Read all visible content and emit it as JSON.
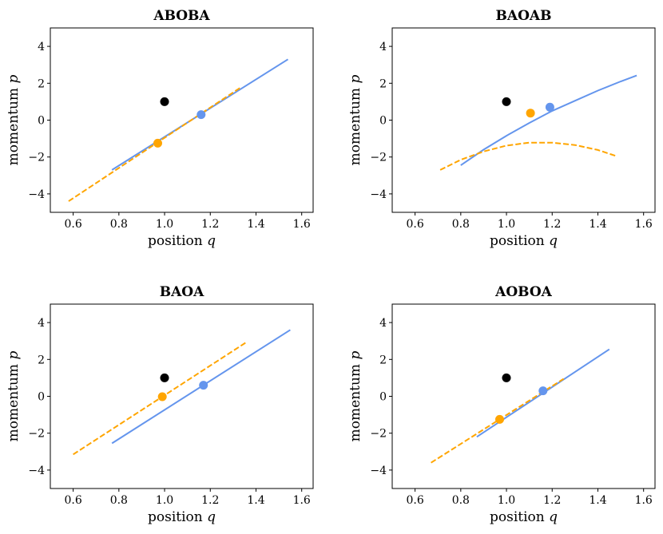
{
  "chart_data": [
    {
      "type": "line",
      "title": "ABOBA",
      "xlabel": "position ",
      "xlabel_var": "q",
      "ylabel": "momentum ",
      "ylabel_var": "p",
      "xlim": [
        0.5,
        1.65
      ],
      "ylim": [
        -5,
        5
      ],
      "xticks": [
        0.6,
        0.8,
        1.0,
        1.2,
        1.4,
        1.6
      ],
      "xtick_labels": [
        "0.6",
        "0.8",
        "1.0",
        "1.2",
        "1.4",
        "1.6"
      ],
      "yticks": [
        -4,
        -2,
        0,
        2,
        4
      ],
      "ytick_labels": [
        "−4",
        "−2",
        "0",
        "2",
        "4"
      ],
      "series": [
        {
          "name": "blue curve",
          "color": "#6495ED",
          "dash": "solid",
          "x": [
            0.77,
            1.54
          ],
          "y": [
            -2.7,
            3.3
          ]
        },
        {
          "name": "orange curve",
          "color": "#FFA500",
          "dash": "dashed",
          "x": [
            0.58,
            1.33
          ],
          "y": [
            -4.4,
            1.75
          ]
        }
      ],
      "points": [
        {
          "name": "black point",
          "color": "#000000",
          "x": 1.0,
          "y": 1.0
        },
        {
          "name": "blue point",
          "color": "#6495ED",
          "x": 1.16,
          "y": 0.3
        },
        {
          "name": "orange point",
          "color": "#FFA500",
          "x": 0.97,
          "y": -1.25
        }
      ]
    },
    {
      "type": "line",
      "title": "BAOAB",
      "xlabel": "position ",
      "xlabel_var": "q",
      "ylabel": "momentum ",
      "ylabel_var": "p",
      "xlim": [
        0.5,
        1.65
      ],
      "ylim": [
        -5,
        5
      ],
      "xticks": [
        0.6,
        0.8,
        1.0,
        1.2,
        1.4,
        1.6
      ],
      "xtick_labels": [
        "0.6",
        "0.8",
        "1.0",
        "1.2",
        "1.4",
        "1.6"
      ],
      "yticks": [
        -4,
        -2,
        0,
        2,
        4
      ],
      "ytick_labels": [
        "−4",
        "−2",
        "0",
        "2",
        "4"
      ],
      "series": [
        {
          "name": "blue curve",
          "color": "#6495ED",
          "dash": "solid",
          "x": [
            0.8,
            0.9,
            1.0,
            1.1,
            1.2,
            1.3,
            1.4,
            1.5,
            1.57
          ],
          "y": [
            -2.45,
            -1.6,
            -0.85,
            -0.15,
            0.5,
            1.05,
            1.6,
            2.1,
            2.42
          ]
        },
        {
          "name": "orange curve",
          "color": "#FFA500",
          "dash": "dashed",
          "x": [
            0.71,
            0.8,
            0.9,
            1.0,
            1.1,
            1.2,
            1.3,
            1.4,
            1.48
          ],
          "y": [
            -2.7,
            -2.15,
            -1.7,
            -1.38,
            -1.22,
            -1.22,
            -1.35,
            -1.62,
            -1.95
          ]
        }
      ],
      "points": [
        {
          "name": "black point",
          "color": "#000000",
          "x": 1.0,
          "y": 1.0
        },
        {
          "name": "blue point",
          "color": "#6495ED",
          "x": 1.19,
          "y": 0.7
        },
        {
          "name": "orange point",
          "color": "#FFA500",
          "x": 1.105,
          "y": 0.38
        }
      ]
    },
    {
      "type": "line",
      "title": "BAOA",
      "xlabel": "position ",
      "xlabel_var": "q",
      "ylabel": "momentum ",
      "ylabel_var": "p",
      "xlim": [
        0.5,
        1.65
      ],
      "ylim": [
        -5,
        5
      ],
      "xticks": [
        0.6,
        0.8,
        1.0,
        1.2,
        1.4,
        1.6
      ],
      "xtick_labels": [
        "0.6",
        "0.8",
        "1.0",
        "1.2",
        "1.4",
        "1.6"
      ],
      "yticks": [
        -4,
        -2,
        0,
        2,
        4
      ],
      "ytick_labels": [
        "−4",
        "−2",
        "0",
        "2",
        "4"
      ],
      "series": [
        {
          "name": "blue curve",
          "color": "#6495ED",
          "dash": "solid",
          "x": [
            0.77,
            1.55
          ],
          "y": [
            -2.55,
            3.6
          ]
        },
        {
          "name": "orange curve",
          "color": "#FFA500",
          "dash": "dashed",
          "x": [
            0.6,
            1.36
          ],
          "y": [
            -3.15,
            2.95
          ]
        }
      ],
      "points": [
        {
          "name": "black point",
          "color": "#000000",
          "x": 1.0,
          "y": 1.0
        },
        {
          "name": "blue point",
          "color": "#6495ED",
          "x": 1.17,
          "y": 0.6
        },
        {
          "name": "orange point",
          "color": "#FFA500",
          "x": 0.99,
          "y": -0.02
        }
      ]
    },
    {
      "type": "line",
      "title": "AOBOA",
      "xlabel": "position ",
      "xlabel_var": "q",
      "ylabel": "momentum ",
      "ylabel_var": "p",
      "xlim": [
        0.5,
        1.65
      ],
      "ylim": [
        -5,
        5
      ],
      "xticks": [
        0.6,
        0.8,
        1.0,
        1.2,
        1.4,
        1.6
      ],
      "xtick_labels": [
        "0.6",
        "0.8",
        "1.0",
        "1.2",
        "1.4",
        "1.6"
      ],
      "yticks": [
        -4,
        -2,
        0,
        2,
        4
      ],
      "ytick_labels": [
        "−4",
        "−2",
        "0",
        "2",
        "4"
      ],
      "series": [
        {
          "name": "blue curve",
          "color": "#6495ED",
          "dash": "solid",
          "x": [
            0.87,
            1.45
          ],
          "y": [
            -2.2,
            2.55
          ]
        },
        {
          "name": "orange curve",
          "color": "#FFA500",
          "dash": "dashed",
          "x": [
            0.67,
            1.25
          ],
          "y": [
            -3.6,
            0.95
          ]
        }
      ],
      "points": [
        {
          "name": "black point",
          "color": "#000000",
          "x": 1.0,
          "y": 1.0
        },
        {
          "name": "blue point",
          "color": "#6495ED",
          "x": 1.16,
          "y": 0.3
        },
        {
          "name": "orange point",
          "color": "#FFA500",
          "x": 0.97,
          "y": -1.25
        }
      ]
    }
  ]
}
